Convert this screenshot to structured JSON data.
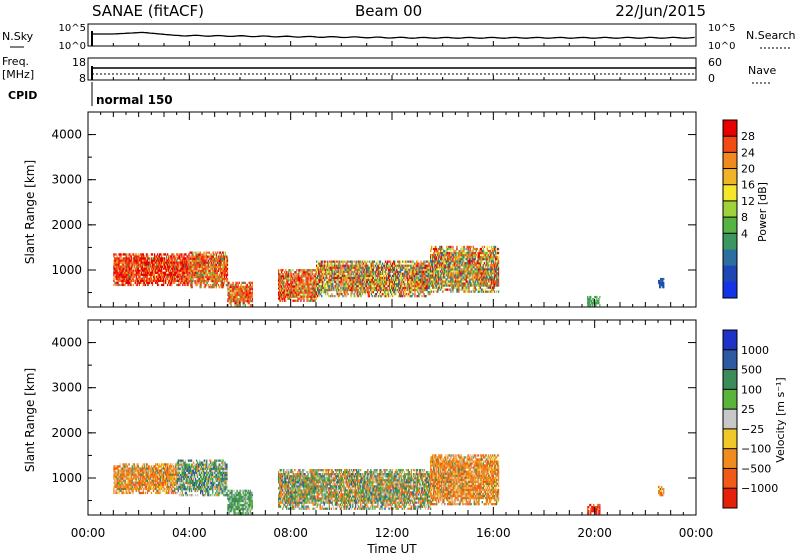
{
  "header": {
    "station": "SANAE (fitACF)",
    "beam": "Beam 00",
    "date": "22/Jun/2015"
  },
  "top_panels": {
    "nsky_label": "N.Sky",
    "nsearch_label": "N.Search",
    "freq_label_1": "Freq.",
    "freq_label_2": "[MHz]",
    "nave_label": "Nave",
    "cpid_label": "CPID",
    "cpid_value": "normal 150",
    "nsky_ticks": [
      "10^5",
      "10^0"
    ],
    "nsearch_ticks": [
      "10^5",
      "10^0"
    ],
    "freq_ticks": [
      "18",
      "8"
    ],
    "nave_ticks": [
      "60",
      "0"
    ]
  },
  "colorbars": {
    "power": {
      "label": "Power [dB]",
      "ticks": [
        "28",
        "24",
        "20",
        "16",
        "12",
        "8",
        "4"
      ],
      "colors": [
        "#e60000",
        "#f24a14",
        "#f08a1e",
        "#f0b428",
        "#f5e628",
        "#a0d23c",
        "#55b443",
        "#3c9660",
        "#2d6ea0",
        "#1e46b4",
        "#1432e6"
      ]
    },
    "velocity": {
      "label": "Velocity [m s⁻¹]",
      "ticks": [
        "1000",
        "500",
        "100",
        "25",
        "−25",
        "−100",
        "−500",
        "−1000"
      ],
      "colors": [
        "#1e32c8",
        "#2d5aa0",
        "#3c8c5a",
        "#5ab43c",
        "#c8c8c8",
        "#f0c828",
        "#f08c1e",
        "#f05a14",
        "#e61e0a"
      ]
    }
  },
  "chart_data": [
    {
      "type": "heatmap",
      "title": "",
      "xlabel": "",
      "ylabel": "Slant Range [km]",
      "x_range_hours": [
        0,
        24
      ],
      "ylim": [
        180,
        4500
      ],
      "y_ticks": [
        "4000",
        "3000",
        "2000",
        "1000"
      ],
      "colorbar_label": "Power [dB]",
      "patches": [
        {
          "t": [
            1.0,
            4.0
          ],
          "r": [
            650,
            1350
          ],
          "dominant": "red-orange"
        },
        {
          "t": [
            4.0,
            5.5
          ],
          "r": [
            600,
            1400
          ],
          "dominant": "orange"
        },
        {
          "t": [
            5.5,
            6.5
          ],
          "r": [
            200,
            700
          ],
          "dominant": "orange"
        },
        {
          "t": [
            7.5,
            9.0
          ],
          "r": [
            300,
            1000
          ],
          "dominant": "orange"
        },
        {
          "t": [
            9.0,
            13.5
          ],
          "r": [
            400,
            1200
          ],
          "dominant": "green-orange"
        },
        {
          "t": [
            13.5,
            16.2
          ],
          "r": [
            500,
            1500
          ],
          "dominant": "green-orange"
        },
        {
          "t": [
            19.7,
            20.2
          ],
          "r": [
            200,
            400
          ],
          "dominant": "green"
        },
        {
          "t": [
            22.5,
            22.7
          ],
          "r": [
            600,
            800
          ],
          "dominant": "blue"
        }
      ]
    },
    {
      "type": "heatmap",
      "title": "",
      "xlabel": "Time UT",
      "ylabel": "Slant Range [km]",
      "x_range_hours": [
        0,
        24
      ],
      "x_ticks": [
        "00:00",
        "04:00",
        "08:00",
        "12:00",
        "16:00",
        "20:00",
        "00:00"
      ],
      "ylim": [
        180,
        4500
      ],
      "y_ticks": [
        "4000",
        "3000",
        "2000",
        "1000"
      ],
      "colorbar_label": "Velocity [m s⁻¹]",
      "patches": [
        {
          "t": [
            1.0,
            3.5
          ],
          "r": [
            650,
            1300
          ],
          "dominant": "orange"
        },
        {
          "t": [
            3.5,
            5.5
          ],
          "r": [
            600,
            1400
          ],
          "dominant": "green-grey"
        },
        {
          "t": [
            5.5,
            6.5
          ],
          "r": [
            200,
            700
          ],
          "dominant": "green"
        },
        {
          "t": [
            7.5,
            13.5
          ],
          "r": [
            300,
            1200
          ],
          "dominant": "green-orange"
        },
        {
          "t": [
            13.5,
            16.2
          ],
          "r": [
            400,
            1500
          ],
          "dominant": "orange"
        },
        {
          "t": [
            19.7,
            20.2
          ],
          "r": [
            200,
            400
          ],
          "dominant": "red"
        },
        {
          "t": [
            22.5,
            22.7
          ],
          "r": [
            600,
            800
          ],
          "dominant": "orange"
        }
      ]
    }
  ]
}
